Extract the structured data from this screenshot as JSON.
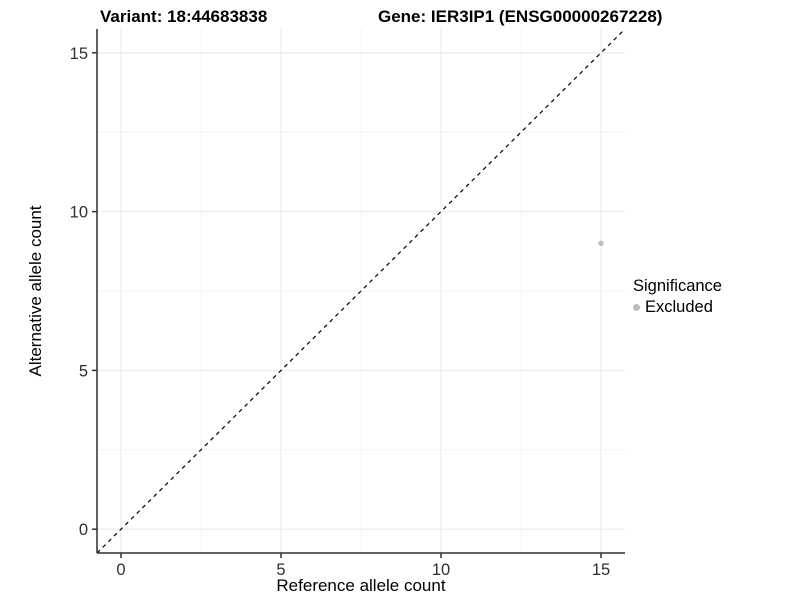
{
  "titles": {
    "variant": "Variant: 18:44683838",
    "gene": "Gene: IER3IP1 (ENSG00000267228)"
  },
  "chart_data": {
    "type": "scatter",
    "xlabel": "Reference allele count",
    "ylabel": "Alternative allele count",
    "x_ticks": [
      0,
      5,
      10,
      15
    ],
    "y_ticks": [
      0,
      5,
      10,
      15
    ],
    "x_minor_ticks": [
      2.5,
      7.5,
      12.5
    ],
    "y_minor_ticks": [
      2.5,
      7.5,
      12.5
    ],
    "xlim": [
      -0.75,
      15.75
    ],
    "ylim": [
      -0.75,
      15.75
    ],
    "grid": "major+minor",
    "reference_line": {
      "style": "dashed",
      "from": [
        -0.75,
        -0.75
      ],
      "to": [
        15.75,
        15.75
      ],
      "color": "#000000"
    },
    "series": [
      {
        "name": "Excluded",
        "points": [
          {
            "x": 15,
            "y": 9
          }
        ],
        "color": "#bdbdbd"
      }
    ],
    "legend": {
      "title": "Significance",
      "position": "right",
      "items": [
        {
          "label": "Excluded",
          "color": "#bdbdbd"
        }
      ]
    }
  },
  "colors": {
    "grid_major": "#e8e8e8",
    "grid_minor": "#f3f3f3",
    "axis_line": "#2f2f2f",
    "tick_label": "#2f2f2f",
    "axis_title": "#000000",
    "point": "#bdbdbd"
  }
}
